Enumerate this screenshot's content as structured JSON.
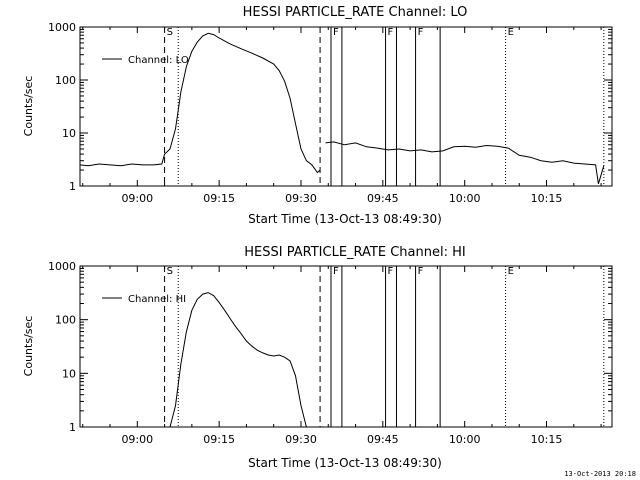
{
  "footer_timestamp": "13-Oct-2013 20:18",
  "chart_data": [
    {
      "type": "line",
      "title": "HESSI PARTICLE_RATE Channel: LO",
      "xlabel": "Start Time (13-Oct-13 08:49:30)",
      "ylabel": "Counts/sec",
      "yscale": "log",
      "xlim": [
        "08:49:30",
        "10:27:00"
      ],
      "ylim": [
        1,
        1000
      ],
      "xticks": [
        "09:00",
        "09:15",
        "09:30",
        "09:45",
        "10:00",
        "10:15"
      ],
      "yticks": [
        "1",
        "10",
        "100",
        "1000"
      ],
      "legend": {
        "label": "Channel: LO",
        "placement": "top-left"
      },
      "markers": [
        {
          "label": "S",
          "time": "09:05:00",
          "style": "dashed"
        },
        {
          "label": "",
          "time": "09:07:30",
          "style": "dotted"
        },
        {
          "label": "",
          "time": "09:33:30",
          "style": "dashed"
        },
        {
          "label": "F",
          "time": "09:35:30",
          "style": "solid"
        },
        {
          "label": "",
          "time": "09:37:30",
          "style": "solid"
        },
        {
          "label": "F",
          "time": "09:45:30",
          "style": "solid"
        },
        {
          "label": "",
          "time": "09:47:30",
          "style": "solid"
        },
        {
          "label": "F",
          "time": "09:51:00",
          "style": "solid"
        },
        {
          "label": "",
          "time": "09:55:30",
          "style": "solid"
        },
        {
          "label": "E",
          "time": "10:07:30",
          "style": "dotted"
        },
        {
          "label": "",
          "time": "10:25:30",
          "style": "dotted"
        }
      ],
      "series": [
        {
          "name": "Channel: LO",
          "x": [
            "08:49:30",
            "08:51:00",
            "08:53:00",
            "08:55:00",
            "08:57:00",
            "08:59:00",
            "09:01:00",
            "09:03:00",
            "09:04:30",
            "09:05:00",
            "09:06:00",
            "09:07:00",
            "09:08:00",
            "09:09:00",
            "09:10:00",
            "09:11:00",
            "09:12:00",
            "09:13:00",
            "09:14:00",
            "09:15:00",
            "09:17:00",
            "09:19:00",
            "09:21:00",
            "09:23:00",
            "09:25:00",
            "09:26:00",
            "09:27:00",
            "09:28:00",
            "09:29:00",
            "09:30:00",
            "09:31:00",
            "09:32:00",
            "09:33:00",
            "09:33:30"
          ],
          "y": [
            2.5,
            2.4,
            2.6,
            2.5,
            2.4,
            2.6,
            2.5,
            2.5,
            2.6,
            4,
            5,
            12,
            60,
            180,
            350,
            520,
            680,
            760,
            720,
            620,
            480,
            390,
            320,
            260,
            200,
            150,
            95,
            45,
            15,
            5,
            3,
            2.5,
            1.8,
            2.0
          ]
        },
        {
          "name": "",
          "x": [
            "09:34:30",
            "09:36:00",
            "09:38:00",
            "09:40:00",
            "09:42:00",
            "09:44:00",
            "09:46:00",
            "09:48:00",
            "09:50:00",
            "09:52:00",
            "09:54:00",
            "09:56:00",
            "09:58:00",
            "10:00:00",
            "10:02:00",
            "10:04:00",
            "10:06:00",
            "10:08:00",
            "10:10:00",
            "10:12:00",
            "10:14:00",
            "10:16:00",
            "10:18:00",
            "10:20:00",
            "10:22:00",
            "10:24:00",
            "10:24:30",
            "10:25:30"
          ],
          "y": [
            6.5,
            6.8,
            6.0,
            6.5,
            5.5,
            5.2,
            4.8,
            5.0,
            4.6,
            4.8,
            4.4,
            4.6,
            5.5,
            5.6,
            5.4,
            5.8,
            5.6,
            5.2,
            3.8,
            3.5,
            3.0,
            2.8,
            3.0,
            2.7,
            2.6,
            2.5,
            1.1,
            2.4
          ]
        }
      ]
    },
    {
      "type": "line",
      "title": "HESSI PARTICLE_RATE Channel: HI",
      "xlabel": "Start Time (13-Oct-13 08:49:30)",
      "ylabel": "Counts/sec",
      "yscale": "log",
      "xlim": [
        "08:49:30",
        "10:27:00"
      ],
      "ylim": [
        1,
        1000
      ],
      "xticks": [
        "09:00",
        "09:15",
        "09:30",
        "09:45",
        "10:00",
        "10:15"
      ],
      "yticks": [
        "1",
        "10",
        "100",
        "1000"
      ],
      "legend": {
        "label": "Channel: HI",
        "placement": "top-left"
      },
      "markers": [
        {
          "label": "S",
          "time": "09:05:00",
          "style": "dashed"
        },
        {
          "label": "",
          "time": "09:07:30",
          "style": "dotted"
        },
        {
          "label": "",
          "time": "09:33:30",
          "style": "dashed"
        },
        {
          "label": "F",
          "time": "09:35:30",
          "style": "solid"
        },
        {
          "label": "",
          "time": "09:37:30",
          "style": "solid"
        },
        {
          "label": "F",
          "time": "09:45:30",
          "style": "solid"
        },
        {
          "label": "",
          "time": "09:47:30",
          "style": "solid"
        },
        {
          "label": "F",
          "time": "09:51:00",
          "style": "solid"
        },
        {
          "label": "",
          "time": "09:55:30",
          "style": "solid"
        },
        {
          "label": "E",
          "time": "10:07:30",
          "style": "dotted"
        },
        {
          "label": "",
          "time": "10:25:30",
          "style": "dotted"
        }
      ],
      "series": [
        {
          "name": "Channel: HI",
          "x": [
            "09:06:00",
            "09:07:00",
            "09:08:00",
            "09:09:00",
            "09:10:00",
            "09:11:00",
            "09:12:00",
            "09:13:00",
            "09:14:00",
            "09:15:00",
            "09:16:00",
            "09:17:00",
            "09:18:00",
            "09:19:00",
            "09:20:00",
            "09:21:00",
            "09:22:00",
            "09:23:00",
            "09:24:00",
            "09:25:00",
            "09:26:00",
            "09:27:00",
            "09:28:00",
            "09:29:00",
            "09:30:00",
            "09:31:00"
          ],
          "y": [
            1.0,
            2.5,
            15,
            60,
            150,
            240,
            300,
            320,
            280,
            210,
            150,
            105,
            75,
            55,
            40,
            32,
            27,
            24,
            22,
            21,
            22,
            20,
            17,
            9,
            2.5,
            1.0
          ]
        }
      ]
    }
  ]
}
